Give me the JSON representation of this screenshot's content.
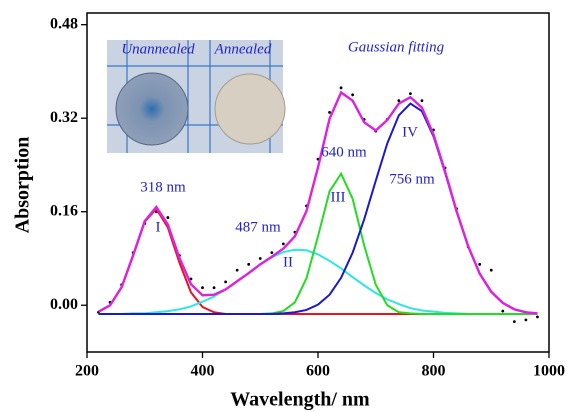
{
  "chart_data": {
    "type": "line",
    "x_label": "Wavelength/ nm",
    "y_label": "Absorption",
    "xlim": [
      200,
      1000
    ],
    "ylim": [
      -0.08,
      0.5
    ],
    "xticks": [
      200,
      400,
      600,
      800,
      1000
    ],
    "yticks": [
      {
        "value": 0,
        "label": "0.00"
      },
      {
        "value": 0.16,
        "label": "0.16"
      },
      {
        "value": 0.32,
        "label": "0.32"
      },
      {
        "value": 0.48,
        "label": "0.48"
      }
    ],
    "x": [
      220,
      240,
      260,
      280,
      300,
      320,
      340,
      360,
      380,
      400,
      420,
      440,
      460,
      480,
      500,
      520,
      540,
      560,
      580,
      600,
      620,
      640,
      660,
      680,
      700,
      720,
      740,
      760,
      780,
      800,
      820,
      840,
      860,
      880,
      900,
      920,
      940,
      960,
      980
    ],
    "series": [
      {
        "name": "measured",
        "style": "dots",
        "color": "#000000",
        "values": [
          -0.012,
          0.005,
          0.035,
          0.09,
          0.14,
          0.16,
          0.15,
          0.085,
          0.045,
          0.03,
          0.03,
          0.04,
          0.06,
          0.07,
          0.08,
          0.09,
          0.105,
          0.125,
          0.17,
          0.25,
          0.33,
          0.372,
          0.36,
          0.318,
          0.298,
          0.318,
          0.35,
          0.362,
          0.35,
          0.3,
          0.235,
          0.165,
          0.1,
          0.07,
          0.06,
          -0.01,
          -0.028,
          -0.025,
          -0.02
        ]
      },
      {
        "name": "I",
        "style": "line",
        "color": "#e8141a",
        "values": [
          -0.011,
          0.0,
          0.031,
          0.085,
          0.143,
          0.165,
          0.133,
          0.073,
          0.022,
          -0.003,
          -0.012,
          -0.015,
          -0.015,
          -0.015,
          -0.015,
          -0.015,
          -0.015,
          -0.015,
          -0.015,
          -0.015,
          -0.015,
          -0.015,
          -0.015,
          -0.015,
          -0.015,
          -0.015,
          -0.015,
          -0.015,
          -0.015,
          -0.015,
          -0.015,
          -0.015,
          -0.015,
          -0.015,
          -0.015,
          -0.015,
          -0.015,
          -0.015,
          -0.015
        ]
      },
      {
        "name": "II",
        "style": "line",
        "color": "#2ee6e6",
        "values": [
          -0.015,
          -0.015,
          -0.015,
          -0.014,
          -0.014,
          -0.012,
          -0.01,
          -0.007,
          -0.002,
          0.006,
          0.015,
          0.027,
          0.041,
          0.055,
          0.07,
          0.082,
          0.091,
          0.095,
          0.094,
          0.087,
          0.076,
          0.063,
          0.048,
          0.034,
          0.021,
          0.01,
          0.002,
          -0.005,
          -0.009,
          -0.011,
          -0.013,
          -0.014,
          -0.015,
          -0.015,
          -0.015,
          -0.015,
          -0.015,
          -0.015,
          -0.015
        ]
      },
      {
        "name": "III",
        "style": "line",
        "color": "#22dd22",
        "values": [
          -0.015,
          -0.015,
          -0.015,
          -0.015,
          -0.015,
          -0.015,
          -0.015,
          -0.015,
          -0.015,
          -0.015,
          -0.015,
          -0.015,
          -0.015,
          -0.015,
          -0.015,
          -0.014,
          -0.01,
          0.005,
          0.046,
          0.118,
          0.195,
          0.225,
          0.182,
          0.102,
          0.035,
          0.0,
          -0.012,
          -0.014,
          -0.015,
          -0.015,
          -0.015,
          -0.015,
          -0.015,
          -0.015,
          -0.015,
          -0.015,
          -0.015,
          -0.015,
          -0.015
        ]
      },
      {
        "name": "IV",
        "style": "line",
        "color": "#1a1acc",
        "values": [
          -0.015,
          -0.015,
          -0.015,
          -0.015,
          -0.015,
          -0.015,
          -0.015,
          -0.015,
          -0.015,
          -0.015,
          -0.015,
          -0.015,
          -0.015,
          -0.015,
          -0.015,
          -0.015,
          -0.014,
          -0.012,
          -0.008,
          0.001,
          0.018,
          0.047,
          0.09,
          0.147,
          0.213,
          0.277,
          0.325,
          0.345,
          0.332,
          0.289,
          0.227,
          0.16,
          0.101,
          0.054,
          0.023,
          0.004,
          -0.007,
          -0.012,
          -0.014
        ]
      },
      {
        "name": "Gaussian fitting",
        "style": "line",
        "color": "#e020e0",
        "values": [
          -0.011,
          0.0,
          0.031,
          0.086,
          0.144,
          0.168,
          0.138,
          0.081,
          0.036,
          0.017,
          0.018,
          0.027,
          0.041,
          0.055,
          0.07,
          0.083,
          0.097,
          0.118,
          0.161,
          0.236,
          0.319,
          0.364,
          0.35,
          0.313,
          0.299,
          0.317,
          0.345,
          0.356,
          0.338,
          0.292,
          0.229,
          0.161,
          0.101,
          0.054,
          0.023,
          0.004,
          -0.007,
          -0.012,
          -0.014
        ]
      }
    ],
    "annotations": [
      "318 nm",
      "I",
      "487 nm",
      "II",
      "640 nm",
      "III",
      "756 nm",
      "IV",
      "Gaussian fitting",
      "Unannealed",
      "Annealed"
    ]
  }
}
